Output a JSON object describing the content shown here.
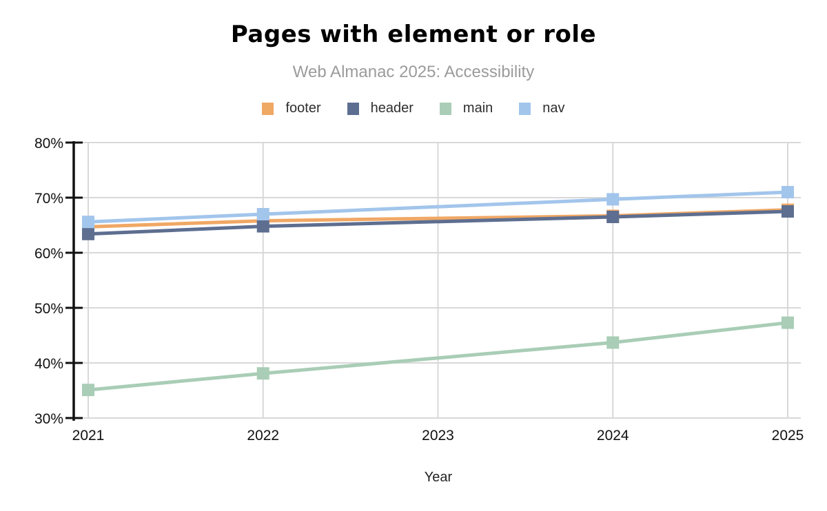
{
  "header": {
    "title": "Pages with element or role",
    "subtitle": "Web Almanac 2025: Accessibility"
  },
  "legend": [
    {
      "label": "footer",
      "color": "#F0A865"
    },
    {
      "label": "header",
      "color": "#5D6E90"
    },
    {
      "label": "main",
      "color": "#A9CDB6"
    },
    {
      "label": "nav",
      "color": "#A2C5EB"
    }
  ],
  "chart_data": {
    "type": "line",
    "title": "Pages with element or role",
    "subtitle": "Web Almanac 2025: Accessibility",
    "xlabel": "Year",
    "ylabel": "",
    "x": [
      2021,
      2022,
      2024,
      2025
    ],
    "series": [
      {
        "name": "footer",
        "color": "#F0A865",
        "values": [
          64.7,
          65.8,
          66.7,
          67.8
        ]
      },
      {
        "name": "header",
        "color": "#5D6E90",
        "values": [
          63.4,
          64.8,
          66.5,
          67.5
        ]
      },
      {
        "name": "main",
        "color": "#A9CDB6",
        "values": [
          35.1,
          38.1,
          43.7,
          47.3
        ]
      },
      {
        "name": "nav",
        "color": "#A2C5EB",
        "values": [
          65.6,
          67.0,
          69.7,
          71.0
        ]
      }
    ],
    "ylim": [
      30,
      80
    ],
    "yticks": [
      "30%",
      "40%",
      "50%",
      "60%",
      "70%",
      "80%"
    ],
    "ytick_values": [
      30,
      40,
      50,
      60,
      70,
      80
    ],
    "xticks": [
      "2021",
      "2022",
      "2023",
      "2024",
      "2025"
    ],
    "xtick_values": [
      2021,
      2022,
      2023,
      2024,
      2025
    ],
    "grid": true,
    "legend_position": "top",
    "marker": "square",
    "notes": "No data point at 2023; lines connect 2022 directly to 2024",
    "colors": {
      "grid": "#D8D8D8",
      "axis": "#111111",
      "tick_label": "#111111",
      "axis_title": "#222222"
    }
  }
}
